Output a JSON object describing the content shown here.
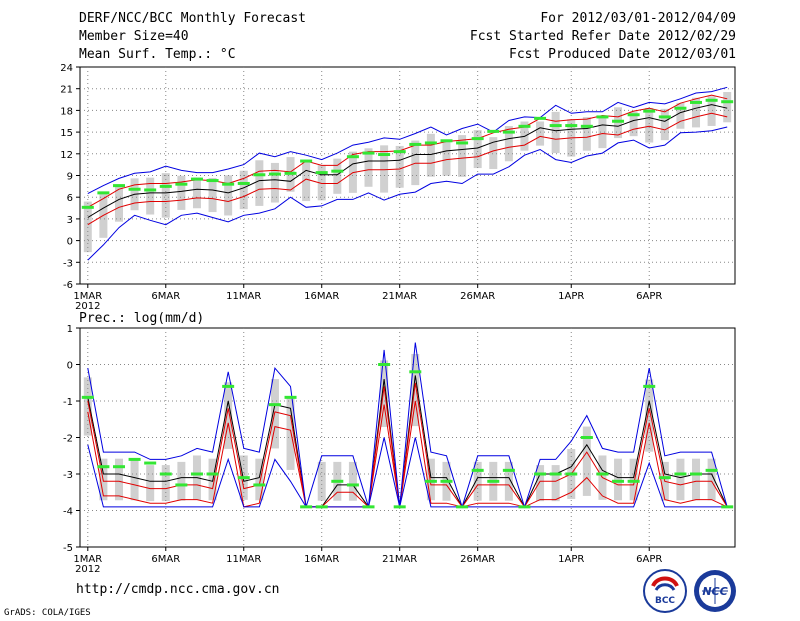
{
  "header": {
    "title": "DERF/NCC/BCC Monthly Forecast",
    "member_size": "Member Size=40",
    "variable": "Mean Surf. Temp.: °C",
    "period": "For 2012/03/01-2012/04/09",
    "start_ref": "Fcst Started Refer Date 2012/02/29",
    "produced": "Fcst Produced Date 2012/03/01"
  },
  "footer": {
    "url": "http://cmdp.ncc.cma.gov.cn",
    "grads": "GrADS: COLA/IGES",
    "logo_bcc": "BCC",
    "logo_ncc": "NCC"
  },
  "colors": {
    "mean": "#000000",
    "inner_band": "#e00000",
    "outer_band": "#0000e0",
    "observed": "#33e633",
    "box": "#d0d0d0",
    "grid": "#888888"
  },
  "chart_data": [
    {
      "type": "line",
      "title": "Mean Surf. Temp.: °C",
      "x_tick_labels": [
        "1MAR\n2012",
        "6MAR",
        "11MAR",
        "16MAR",
        "21MAR",
        "26MAR",
        "1APR",
        "6APR"
      ],
      "x_tick_days": [
        1,
        6,
        11,
        16,
        21,
        26,
        32,
        37
      ],
      "ylim": [
        -6,
        24
      ],
      "yticks": [
        -6,
        -3,
        0,
        3,
        6,
        9,
        12,
        15,
        18,
        21,
        24
      ],
      "series": [
        {
          "name": "ensemble_mean",
          "color": "#000000",
          "values": [
            3.2,
            4.5,
            5.7,
            6.4,
            6.6,
            6.6,
            6.8,
            7.1,
            7.0,
            6.6,
            7.3,
            8.3,
            8.4,
            8.2,
            9.7,
            9.1,
            9.1,
            10.6,
            11.0,
            11.0,
            11.1,
            11.9,
            11.9,
            12.4,
            12.6,
            12.8,
            13.6,
            14.1,
            14.4,
            15.6,
            15.2,
            15.4,
            15.5,
            16.0,
            15.8,
            16.6,
            17.0,
            16.5,
            17.7,
            18.3,
            18.8,
            18.3
          ]
        },
        {
          "name": "upper_inner",
          "color": "#e00000",
          "values": [
            4.6,
            5.8,
            7.1,
            7.7,
            7.9,
            7.9,
            8.1,
            8.4,
            8.3,
            7.9,
            8.6,
            9.6,
            9.7,
            9.5,
            11.0,
            10.4,
            10.4,
            11.9,
            12.3,
            12.3,
            12.4,
            13.2,
            13.2,
            13.7,
            13.9,
            14.1,
            14.9,
            15.4,
            15.7,
            16.9,
            16.5,
            16.7,
            16.8,
            17.3,
            17.1,
            17.9,
            18.3,
            17.8,
            19.0,
            19.6,
            20.1,
            19.6
          ]
        },
        {
          "name": "lower_inner",
          "color": "#e00000",
          "values": [
            2.2,
            3.5,
            4.6,
            5.2,
            5.4,
            5.4,
            5.6,
            5.9,
            5.8,
            5.4,
            6.1,
            7.1,
            7.2,
            7.0,
            8.5,
            7.9,
            7.9,
            9.4,
            9.8,
            9.8,
            9.9,
            10.7,
            10.7,
            11.2,
            11.4,
            11.6,
            12.4,
            12.9,
            13.2,
            14.4,
            14.0,
            14.2,
            14.3,
            14.8,
            14.6,
            15.4,
            15.8,
            15.3,
            16.5,
            17.1,
            17.6,
            17.1
          ]
        },
        {
          "name": "upper_outer",
          "color": "#0000e0",
          "values": [
            6.5,
            7.6,
            8.6,
            9.3,
            9.5,
            10.3,
            9.7,
            9.4,
            9.4,
            9.9,
            10.5,
            12.1,
            11.6,
            12.3,
            11.8,
            11.2,
            12.1,
            13.2,
            13.6,
            14.2,
            14.0,
            14.8,
            15.7,
            14.6,
            15.5,
            16.1,
            15.0,
            16.6,
            17.1,
            17.0,
            18.7,
            17.6,
            17.8,
            17.8,
            19.1,
            18.4,
            19.1,
            18.9,
            19.6,
            20.4,
            20.6,
            21.2
          ]
        },
        {
          "name": "lower_outer",
          "color": "#0000e0",
          "values": [
            -2.7,
            -0.6,
            1.8,
            3.5,
            2.8,
            2.2,
            3.5,
            3.8,
            3.2,
            2.6,
            3.5,
            3.8,
            4.4,
            6.0,
            4.6,
            4.8,
            5.7,
            5.7,
            6.6,
            5.6,
            6.4,
            6.7,
            7.9,
            8.2,
            7.9,
            9.2,
            9.2,
            10.2,
            11.8,
            12.6,
            11.2,
            10.8,
            11.7,
            12.1,
            13.5,
            13.9,
            12.8,
            13.2,
            14.9,
            15.0,
            15.2,
            15.7
          ]
        },
        {
          "name": "observed_climatology",
          "color": "#33e633",
          "values": [
            4.6,
            6.6,
            7.6,
            7.1,
            7.0,
            7.5,
            7.8,
            8.5,
            8.3,
            7.8,
            7.9,
            9.1,
            9.2,
            9.3,
            11.0,
            9.4,
            9.6,
            11.6,
            12.1,
            11.9,
            12.3,
            13.3,
            13.5,
            13.8,
            13.5,
            14.1,
            15.1,
            15.0,
            15.8,
            16.9,
            15.9,
            15.9,
            15.8,
            17.1,
            16.5,
            17.4,
            17.9,
            17.1,
            18.3,
            19.1,
            19.4,
            19.2
          ]
        }
      ]
    },
    {
      "type": "line",
      "title": "Prec.: log(mm/d)",
      "x_tick_labels": [
        "1MAR\n2012",
        "6MAR",
        "11MAR",
        "16MAR",
        "21MAR",
        "26MAR",
        "1APR",
        "6APR"
      ],
      "x_tick_days": [
        1,
        6,
        11,
        16,
        21,
        26,
        32,
        37
      ],
      "ylim": [
        -5,
        1
      ],
      "yticks": [
        -5,
        -4,
        -3,
        -2,
        -1,
        0,
        1
      ],
      "series": [
        {
          "name": "ensemble_mean",
          "color": "#000000",
          "values": [
            -0.9,
            -3.0,
            -3.0,
            -3.1,
            -3.2,
            -3.2,
            -3.1,
            -3.1,
            -3.2,
            -1.0,
            -3.2,
            -3.1,
            -1.1,
            -1.2,
            -3.9,
            -3.9,
            -3.3,
            -3.3,
            -3.9,
            -0.4,
            -3.9,
            -0.3,
            -3.1,
            -3.1,
            -3.9,
            -3.1,
            -3.1,
            -3.1,
            -3.9,
            -3.0,
            -3.0,
            -2.8,
            -2.2,
            -2.9,
            -3.1,
            -3.1,
            -1.0,
            -3.0,
            -3.1,
            -3.0,
            -3.0,
            -3.9
          ]
        },
        {
          "name": "upper_inner",
          "color": "#e00000",
          "values": [
            -1.0,
            -3.2,
            -3.2,
            -3.3,
            -3.4,
            -3.4,
            -3.3,
            -3.3,
            -3.4,
            -1.2,
            -3.4,
            -3.3,
            -1.3,
            -1.4,
            -3.9,
            -3.9,
            -3.5,
            -3.5,
            -3.9,
            -0.6,
            -3.9,
            -0.5,
            -3.3,
            -3.3,
            -3.9,
            -3.3,
            -3.3,
            -3.3,
            -3.9,
            -3.2,
            -3.2,
            -3.0,
            -2.4,
            -3.1,
            -3.3,
            -3.3,
            -1.2,
            -3.2,
            -3.3,
            -3.2,
            -3.2,
            -3.9
          ]
        },
        {
          "name": "lower_inner",
          "color": "#e00000",
          "values": [
            -1.3,
            -3.6,
            -3.6,
            -3.7,
            -3.8,
            -3.8,
            -3.7,
            -3.7,
            -3.8,
            -1.6,
            -3.9,
            -3.8,
            -1.7,
            -1.8,
            -3.9,
            -3.9,
            -3.9,
            -3.9,
            -3.9,
            -1.1,
            -3.9,
            -1.0,
            -3.8,
            -3.8,
            -3.9,
            -3.8,
            -3.8,
            -3.8,
            -3.9,
            -3.7,
            -3.7,
            -3.5,
            -3.1,
            -3.6,
            -3.8,
            -3.8,
            -1.6,
            -3.7,
            -3.8,
            -3.7,
            -3.7,
            -3.9
          ]
        },
        {
          "name": "upper_outer",
          "color": "#0000e0",
          "values": [
            -0.1,
            -2.4,
            -2.4,
            -2.4,
            -2.6,
            -2.6,
            -2.5,
            -2.3,
            -2.4,
            -0.2,
            -2.3,
            -2.4,
            -0.1,
            -0.6,
            -3.9,
            -2.5,
            -2.5,
            -2.5,
            -3.9,
            0.4,
            -3.9,
            0.6,
            -2.4,
            -2.5,
            -3.9,
            -2.5,
            -2.5,
            -2.5,
            -3.9,
            -2.6,
            -2.6,
            -2.1,
            -1.4,
            -2.3,
            -2.4,
            -2.4,
            -0.1,
            -2.5,
            -2.4,
            -2.4,
            -2.4,
            -3.9
          ]
        },
        {
          "name": "lower_outer",
          "color": "#0000e0",
          "values": [
            -2.2,
            -3.9,
            -3.9,
            -3.9,
            -3.9,
            -3.9,
            -3.9,
            -3.9,
            -3.9,
            -2.6,
            -3.9,
            -3.9,
            -2.6,
            -3.2,
            -3.9,
            -3.9,
            -3.9,
            -3.9,
            -3.9,
            -2.0,
            -3.9,
            -2.0,
            -3.9,
            -3.9,
            -3.9,
            -3.9,
            -3.9,
            -3.9,
            -3.9,
            -3.9,
            -3.9,
            -3.9,
            -3.9,
            -3.9,
            -3.9,
            -3.9,
            -2.7,
            -3.9,
            -3.9,
            -3.9,
            -3.9,
            -3.9
          ]
        },
        {
          "name": "observed_climatology",
          "color": "#33e633",
          "values": [
            -0.9,
            -2.8,
            -2.8,
            -2.6,
            -2.7,
            -3.0,
            -3.3,
            -3.0,
            -3.0,
            -0.6,
            -3.1,
            -3.3,
            -1.1,
            -0.9,
            -3.9,
            -3.9,
            -3.2,
            -3.3,
            -3.9,
            0.0,
            -3.9,
            -0.2,
            -3.2,
            -3.2,
            -3.9,
            -2.9,
            -3.2,
            -2.9,
            -3.9,
            -3.0,
            -3.0,
            -3.0,
            -2.0,
            -3.0,
            -3.2,
            -3.2,
            -0.6,
            -3.1,
            -3.0,
            -3.0,
            -2.9,
            -3.9
          ]
        }
      ]
    }
  ]
}
